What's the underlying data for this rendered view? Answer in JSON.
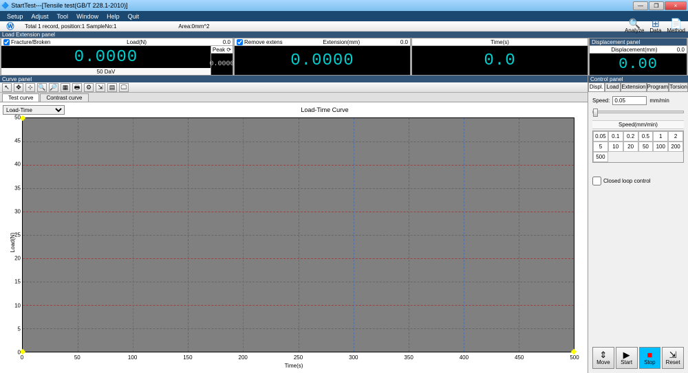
{
  "window": {
    "title": "StartTest---[Tensile test(GB/T 228.1-2010)]",
    "buttons": {
      "min": "—",
      "max": "❐",
      "close": "×"
    }
  },
  "menu": {
    "items": [
      "Setup",
      "Adjust",
      "Tool",
      "Window",
      "Help",
      "Quit"
    ]
  },
  "info": {
    "record": "Total 1 record, position:1 SampleNo:1",
    "area": "Area:0mm^2",
    "tools": {
      "analyze": "Analyze",
      "data": "Data",
      "method": "Method"
    }
  },
  "displays": {
    "row_title": "Load Extension panel",
    "load": {
      "check_label": "Fracture/Broken",
      "title": "Load(N)",
      "small": "0.0",
      "value": "0.0000",
      "footer": "50 DaV",
      "peak_label": "Peak ⟳",
      "peak_value": "0.0000"
    },
    "extension": {
      "check_label": "Remove extens",
      "title": "Extension(mm)",
      "small": "0.0",
      "value": "0.0000"
    },
    "time": {
      "title": "Time(s)",
      "value": "0.0"
    },
    "displacement": {
      "panel_title": "Displacement panel",
      "title": "Displacement(mm)",
      "small": "0.0",
      "value": "0.00"
    }
  },
  "curve": {
    "panel_title": "Curve panel",
    "tabs": {
      "test": "Test curve",
      "contrast": "Contrast curve"
    },
    "selector": "Load-Time",
    "chart_title": "Load-Time Curve",
    "ylabel": "Load(N)",
    "xlabel": "Time(s)",
    "yticks": [
      "0",
      "5",
      "10",
      "15",
      "20",
      "25",
      "30",
      "35",
      "40",
      "45",
      "50"
    ],
    "xticks": [
      "0",
      "50",
      "100",
      "150",
      "200",
      "250",
      "300",
      "350",
      "400",
      "450",
      "500"
    ],
    "background": "#808080",
    "grid_minor": "#666666",
    "grid_major_h": "#a04040",
    "grid_major_v": "#5070a0"
  },
  "control": {
    "panel_title": "Control panel",
    "tabs": [
      "Displ.",
      "Load",
      "Extension",
      "Program",
      "Torsion"
    ],
    "speed_label": "Speed:",
    "speed_value": "0.05",
    "speed_unit": "mm/min",
    "speed_header": "Speed(mm/min)",
    "presets": [
      "0.05",
      "0.1",
      "0.2",
      "0.5",
      "1",
      "2",
      "5",
      "10",
      "20",
      "50",
      "100",
      "200",
      "500"
    ],
    "closed_loop": "Closed loop control",
    "buttons": {
      "move": "Move",
      "start": "Start",
      "stop": "Stop",
      "reset": "Reset"
    }
  }
}
